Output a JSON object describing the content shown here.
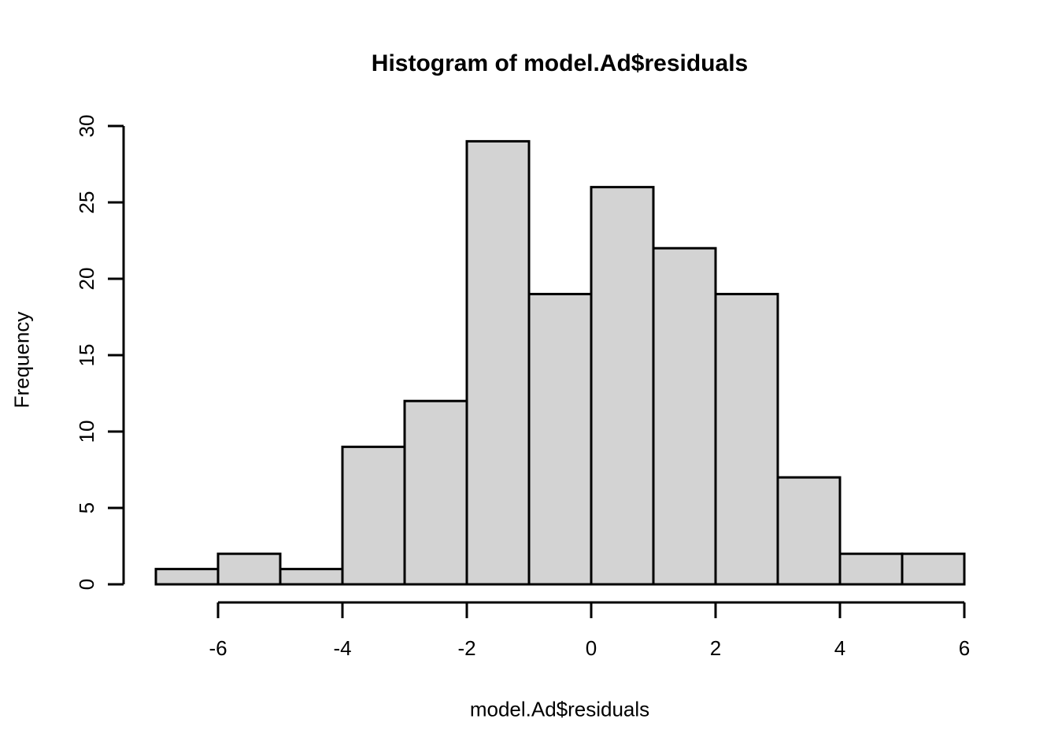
{
  "chart_data": {
    "type": "bar",
    "subtype": "histogram",
    "title": "Histogram of model.Ad$residuals",
    "xlabel": "model.Ad$residuals",
    "ylabel": "Frequency",
    "bins": {
      "start": -7,
      "width": 1
    },
    "bin_edges": [
      -7,
      -6,
      -5,
      -4,
      -3,
      -2,
      -1,
      0,
      1,
      2,
      3,
      4,
      5,
      6
    ],
    "counts": [
      1,
      2,
      1,
      9,
      12,
      29,
      19,
      26,
      22,
      19,
      7,
      2,
      2
    ],
    "x_ticks": [
      -6,
      -4,
      -2,
      0,
      2,
      4,
      6
    ],
    "y_ticks": [
      0,
      5,
      10,
      15,
      20,
      25,
      30
    ],
    "xlim": [
      -7,
      6
    ],
    "ylim": [
      0,
      30
    ],
    "grid": false,
    "legend": null,
    "colors": {
      "bar_fill": "#d3d3d3",
      "bar_stroke": "#000000",
      "axis": "#000000",
      "text": "#000000",
      "background": "#ffffff"
    }
  }
}
